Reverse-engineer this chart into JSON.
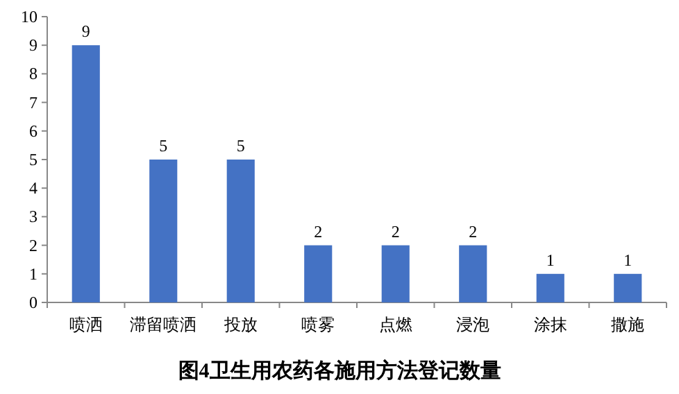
{
  "chart_data": {
    "type": "bar",
    "title": "图4卫生用农药各施用方法登记数量",
    "categories": [
      "喷洒",
      "滞留喷洒",
      "投放",
      "喷雾",
      "点燃",
      "浸泡",
      "涂抹",
      "撒施"
    ],
    "values": [
      9,
      5,
      5,
      2,
      2,
      2,
      1,
      1
    ],
    "color": "#4472c4",
    "ylim": [
      0,
      10
    ],
    "yticks": [
      0,
      1,
      2,
      3,
      4,
      5,
      6,
      7,
      8,
      9,
      10
    ],
    "data_labels": true
  }
}
